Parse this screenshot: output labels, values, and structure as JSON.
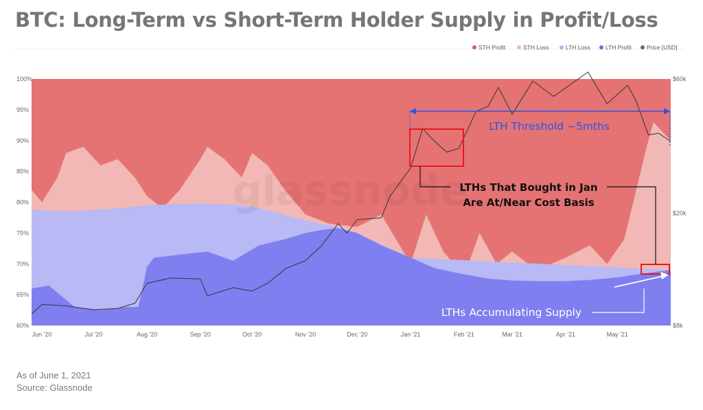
{
  "title": "BTC: Long-Term vs Short-Term Holder Supply in Profit/Loss",
  "footer": {
    "as_of": "As of June 1, 2021",
    "source": "Source: Glassnode"
  },
  "watermark": "glassnode",
  "colors": {
    "sth_profit": "#e57373",
    "sth_loss": "#f2b8b5",
    "lth_loss": "#b8b9f5",
    "lth_profit": "#7f7ff0",
    "price": "#333333",
    "annotation_blue": "#2456e6",
    "annotation_red": "#e8191c"
  },
  "chart_data": {
    "type": "area",
    "stacking": "percent",
    "legend_position": "top-right",
    "legend": [
      {
        "name": "STH Profit",
        "color": "#e05a5a"
      },
      {
        "name": "STH Loss",
        "color": "#f4b3b0"
      },
      {
        "name": "LTH Loss",
        "color": "#b0b2f5"
      },
      {
        "name": "LTH Profit",
        "color": "#6a6bee"
      },
      {
        "name": "Price [USD]",
        "color": "#666666"
      }
    ],
    "x_ticks": [
      "Jun '20",
      "Jul '20",
      "Aug '20",
      "Sep '20",
      "Oct '20",
      "Nov '20",
      "Dec '20",
      "Jan '21",
      "Feb '21",
      "Mar '21",
      "Apr '21",
      "May '21"
    ],
    "y_left_ticks": [
      "100%",
      "95%",
      "90%",
      "85%",
      "80%",
      "75%",
      "70%",
      "65%",
      "60%"
    ],
    "y_left_range": [
      60,
      100
    ],
    "y_right_ticks": [
      "$60k",
      "$20k",
      "$8k"
    ],
    "y_right_scale": "log",
    "y_right_range": [
      8000,
      60000
    ],
    "x_range": [
      "2020-05-26",
      "2021-06-01"
    ],
    "series": [
      {
        "name": "LTH Profit",
        "dates": [
          "2020-05-26",
          "2020-06-05",
          "2020-06-20",
          "2020-07-05",
          "2020-07-20",
          "2020-07-27",
          "2020-08-01",
          "2020-08-05",
          "2020-08-20",
          "2020-09-05",
          "2020-09-20",
          "2020-10-05",
          "2020-10-20",
          "2020-11-01",
          "2020-11-10",
          "2020-11-20",
          "2020-12-01",
          "2020-12-15",
          "2021-01-01",
          "2021-01-15",
          "2021-02-01",
          "2021-02-15",
          "2021-03-01",
          "2021-03-15",
          "2021-04-01",
          "2021-04-15",
          "2021-05-01",
          "2021-05-15",
          "2021-06-01"
        ],
        "values": [
          66,
          66.5,
          63,
          62.5,
          63,
          63,
          69.5,
          71,
          71.5,
          72,
          70.5,
          73,
          74,
          75,
          75.5,
          75.8,
          75,
          73,
          71,
          69.3,
          68.3,
          67.6,
          67.3,
          67.2,
          67.2,
          67.4,
          67.8,
          68.4,
          69
        ]
      },
      {
        "name": "LTH Loss",
        "dates": [
          "2020-05-26",
          "2020-06-15",
          "2020-07-15",
          "2020-08-01",
          "2020-08-15",
          "2020-09-01",
          "2020-09-15",
          "2020-10-01",
          "2020-10-15",
          "2020-11-01",
          "2020-11-10",
          "2020-11-20",
          "2020-12-01",
          "2021-01-01",
          "2021-06-01"
        ],
        "values": [
          78.8,
          78.5,
          79,
          79.5,
          79.7,
          79.8,
          79.7,
          79.3,
          78.3,
          77,
          76.5,
          76,
          75,
          71,
          69
        ]
      },
      {
        "name": "STH Loss",
        "dates": [
          "2020-05-26",
          "2020-06-01",
          "2020-06-10",
          "2020-06-15",
          "2020-06-25",
          "2020-07-05",
          "2020-07-15",
          "2020-07-25",
          "2020-08-01",
          "2020-08-10",
          "2020-08-20",
          "2020-09-01",
          "2020-09-05",
          "2020-09-15",
          "2020-09-25",
          "2020-10-01",
          "2020-10-10",
          "2020-10-20",
          "2020-11-01",
          "2020-11-15",
          "2020-12-01",
          "2020-12-15",
          "2021-01-01",
          "2021-01-10",
          "2021-01-20",
          "2021-02-01",
          "2021-02-10",
          "2021-02-20",
          "2021-03-01",
          "2021-03-15",
          "2021-04-01",
          "2021-04-15",
          "2021-04-25",
          "2021-05-05",
          "2021-05-12",
          "2021-05-18",
          "2021-05-22",
          "2021-06-01"
        ],
        "values": [
          82,
          80,
          84,
          88,
          89,
          86,
          87,
          84,
          81,
          79,
          82,
          87,
          89,
          87,
          84,
          88,
          86,
          82,
          78,
          76.5,
          76,
          78,
          70,
          78,
          72,
          68,
          75,
          70,
          72,
          69,
          71,
          73,
          70,
          74,
          82,
          89,
          93,
          90
        ]
      },
      {
        "name": "STH Profit",
        "dates": [
          "2020-05-26",
          "2021-06-01"
        ],
        "values": [
          100,
          100
        ]
      },
      {
        "name": "Price [USD]",
        "dates": [
          "2020-05-26",
          "2020-06-01",
          "2020-06-15",
          "2020-07-01",
          "2020-07-15",
          "2020-07-25",
          "2020-08-01",
          "2020-08-15",
          "2020-09-01",
          "2020-09-05",
          "2020-09-20",
          "2020-10-01",
          "2020-10-10",
          "2020-10-21",
          "2020-11-01",
          "2020-11-10",
          "2020-11-20",
          "2020-11-25",
          "2020-12-01",
          "2020-12-15",
          "2020-12-20",
          "2021-01-01",
          "2021-01-08",
          "2021-01-15",
          "2021-01-22",
          "2021-01-29",
          "2021-02-08",
          "2021-02-15",
          "2021-02-21",
          "2021-03-01",
          "2021-03-13",
          "2021-03-25",
          "2021-04-14",
          "2021-04-25",
          "2021-05-07",
          "2021-05-12",
          "2021-05-19",
          "2021-05-25",
          "2021-06-01"
        ],
        "values": [
          8800,
          9500,
          9400,
          9100,
          9200,
          9600,
          11300,
          11800,
          11700,
          10200,
          10900,
          10600,
          11300,
          12800,
          13600,
          15300,
          18400,
          17000,
          19000,
          19300,
          23000,
          29000,
          40000,
          36000,
          33000,
          34000,
          46000,
          48000,
          56000,
          45000,
          59000,
          52000,
          63500,
          49000,
          57000,
          50000,
          38000,
          38500,
          36000
        ]
      }
    ],
    "annotations": [
      {
        "id": "lth-threshold",
        "text": "LTH Threshold ~5mths",
        "color": "#2456e6"
      },
      {
        "id": "lth-jan-cost-basis",
        "text": "LTHs That Bought in Jan\nAre At/Near Cost Basis",
        "color": "#e8191c"
      },
      {
        "id": "lth-accumulating",
        "text": "LTHs Accumulating Supply",
        "color": "#ffffff"
      }
    ]
  }
}
